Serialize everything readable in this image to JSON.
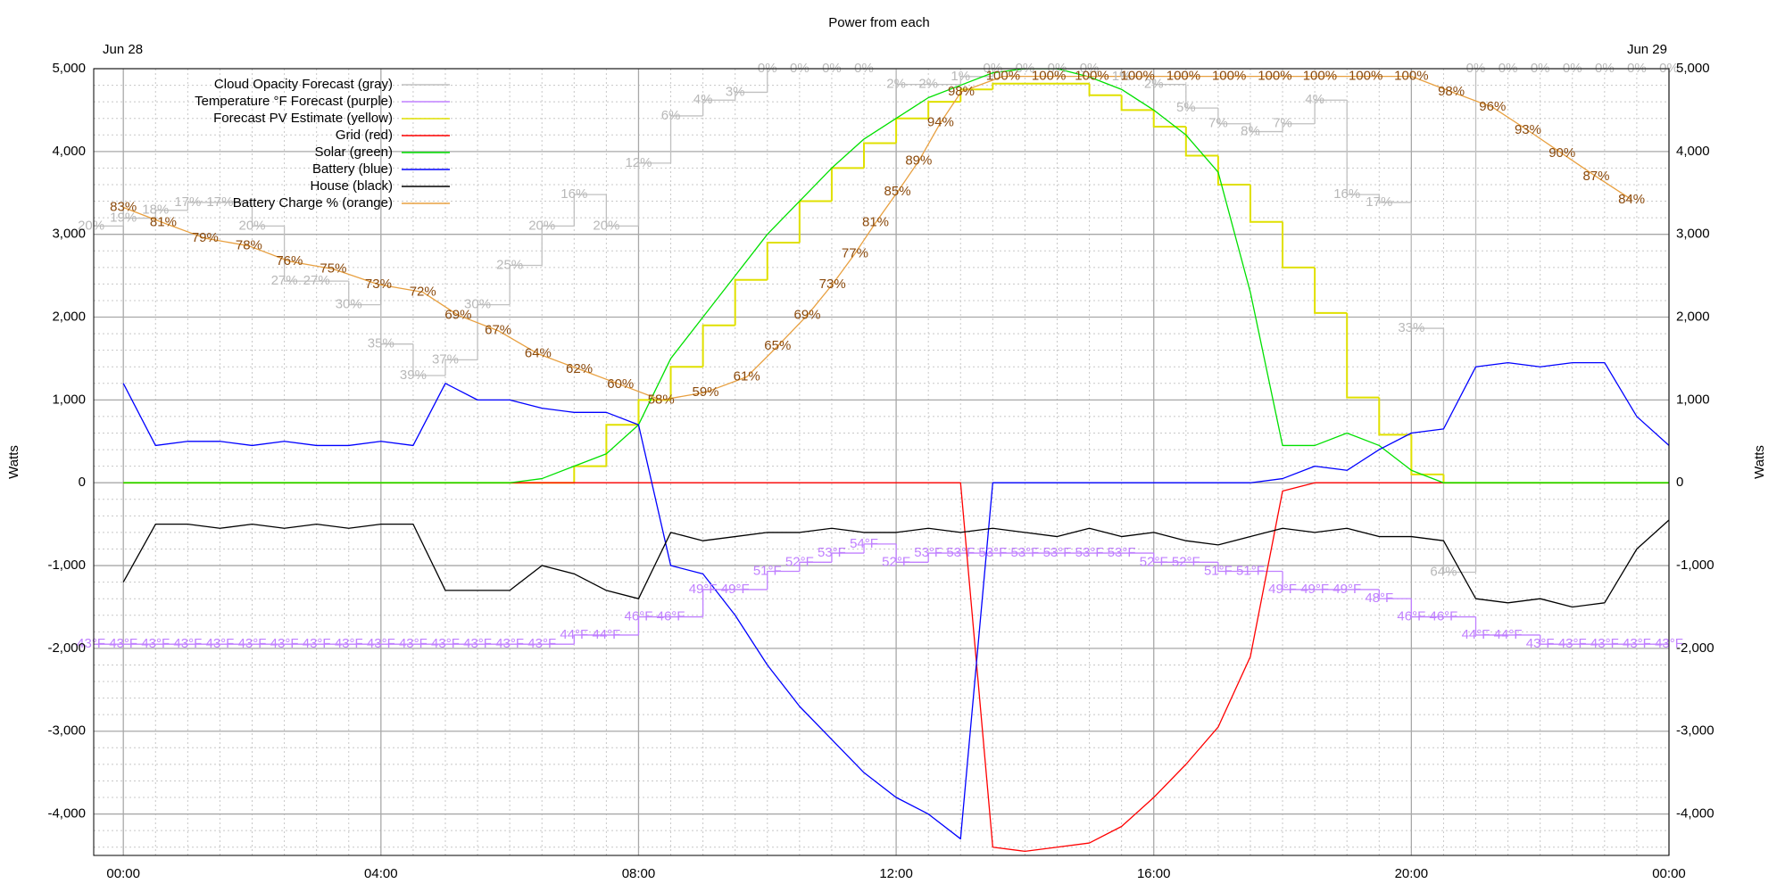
{
  "chart_data": {
    "type": "line",
    "title": "Power from each",
    "annotations": [
      "Jun 28",
      "Jun 29"
    ],
    "y_label": "Watts",
    "grid": true,
    "legend": "top-left",
    "xlim": [
      -0.46,
      24
    ],
    "xticks": [
      {
        "value": 0,
        "label": "00:00"
      },
      {
        "value": 4,
        "label": "04:00"
      },
      {
        "value": 8,
        "label": "08:00"
      },
      {
        "value": 12,
        "label": "12:00"
      },
      {
        "value": 16,
        "label": "16:00"
      },
      {
        "value": 20,
        "label": "20:00"
      },
      {
        "value": 24,
        "label": "00:00"
      }
    ],
    "ylim": [
      -4500,
      5000
    ],
    "yticks": [
      {
        "value": -4000,
        "label": "-4,000"
      },
      {
        "value": -3000,
        "label": "-3,000"
      },
      {
        "value": -2000,
        "label": "-2,000"
      },
      {
        "value": -1000,
        "label": "-1,000"
      },
      0,
      {
        "value": 1000,
        "label": "1,000"
      },
      {
        "value": 2000,
        "label": "2,000"
      },
      {
        "value": 3000,
        "label": "3,000"
      },
      {
        "value": 4000,
        "label": "4,000"
      },
      {
        "value": 5000,
        "label": "5,000"
      }
    ],
    "y2lim": [
      -1.1,
      101
    ],
    "y3lim": [
      100,
      0
    ],
    "y4lim": [
      19.8,
      106.2
    ],
    "x": [
      0,
      0.5,
      1,
      1.5,
      2,
      2.5,
      3,
      3.5,
      4,
      4.5,
      5,
      5.5,
      6,
      6.5,
      7,
      7.5,
      8,
      8.5,
      9,
      9.5,
      10,
      10.5,
      11,
      11.5,
      12,
      12.5,
      13,
      13.5,
      14,
      14.5,
      15,
      15.5,
      16,
      16.5,
      17,
      17.5,
      18,
      18.5,
      19,
      19.5,
      20,
      20.5,
      21,
      21.5,
      22,
      22.5,
      23,
      23.5,
      24
    ],
    "series": [
      {
        "name": "Cloud Opacity Forecast (gray)",
        "color": "#c0c0c0",
        "axis": "y3",
        "step": true,
        "x": [
          -0.5,
          0,
          0.5,
          1,
          1.5,
          2,
          2.5,
          3,
          3.5,
          4,
          4.5,
          5,
          5.5,
          6,
          6.5,
          7,
          7.5,
          8,
          8.5,
          9,
          9.5,
          10,
          10.5,
          11,
          11.5,
          12,
          12.5,
          13,
          13.5,
          14,
          14.5,
          15,
          15.5,
          16,
          16.5,
          17,
          17.5,
          18,
          18.5,
          19,
          19.5,
          20,
          20.5,
          21,
          21.5,
          22,
          22.5,
          23,
          23.5,
          24
        ],
        "values": [
          20,
          19,
          18,
          17,
          17,
          20,
          27,
          27,
          30,
          35,
          39,
          37,
          30,
          25,
          20,
          16,
          20,
          12,
          6,
          4,
          3,
          0,
          0,
          0,
          0,
          2,
          2,
          1,
          0,
          0,
          0,
          0,
          1,
          2,
          5,
          7,
          8,
          7,
          4,
          16,
          17,
          33,
          64,
          0,
          0,
          0,
          0,
          0,
          0,
          0
        ],
        "value_labels": [
          "20%",
          "19%",
          "18%",
          "17%",
          "17%",
          "20%",
          "27%",
          "27%",
          "30%",
          "35%",
          "39%",
          "37%",
          "30%",
          "25%",
          "20%",
          "16%",
          "20%",
          "12%",
          "6%",
          "4%",
          "3%",
          "0%",
          "0%",
          "0%",
          "0%",
          "2%",
          "2%",
          "1%",
          "0%",
          "0%",
          "0%",
          "0%",
          "1%",
          "2%",
          "5%",
          "7%",
          "8%",
          "7%",
          "4%",
          "16%",
          "17%",
          "33%",
          "64%",
          "0%",
          "0%",
          "0%",
          "0%",
          "0%",
          "0%",
          "0%"
        ]
      },
      {
        "name": "Temperature °F Forecast (purple)",
        "color": "#c080ff",
        "axis": "y4",
        "step": true,
        "x": [
          -0.5,
          0,
          0.5,
          1,
          1.5,
          2,
          2.5,
          3,
          3.5,
          4,
          4.5,
          5,
          5.5,
          6,
          6.5,
          7,
          7.5,
          8,
          8.5,
          9,
          9.5,
          10,
          10.5,
          11,
          11.5,
          12,
          12.5,
          13,
          13.5,
          14,
          14.5,
          15,
          15.5,
          16,
          16.5,
          17,
          17.5,
          18,
          18.5,
          19,
          19.5,
          20,
          20.5,
          21,
          21.5,
          22,
          22.5,
          23,
          23.5,
          24
        ],
        "values": [
          43,
          43,
          43,
          43,
          43,
          43,
          43,
          43,
          43,
          43,
          43,
          43,
          43,
          43,
          43,
          44,
          44,
          46,
          46,
          49,
          49,
          51,
          52,
          53,
          54,
          52,
          53,
          53,
          53,
          53,
          53,
          53,
          53,
          52,
          52,
          51,
          51,
          49,
          49,
          49,
          48,
          46,
          46,
          44,
          44,
          43,
          43,
          43,
          43,
          43
        ],
        "value_labels": [
          "43°F",
          "43°F",
          "43°F",
          "43°F",
          "43°F",
          "43°F",
          "43°F",
          "43°F",
          "43°F",
          "43°F",
          "43°F",
          "43°F",
          "43°F",
          "43°F",
          "43°F",
          "44°F",
          "44°F",
          "46°F",
          "46°F",
          "49°F",
          "49°F",
          "51°F",
          "52°F",
          "53°F",
          "54°F",
          "52°F",
          "53°F",
          "53°F",
          "53°F",
          "53°F",
          "53°F",
          "53°F",
          "53°F",
          "52°F",
          "52°F",
          "51°F",
          "51°F",
          "49°F",
          "49°F",
          "49°F",
          "48°F",
          "46°F",
          "46°F",
          "44°F",
          "44°F",
          "43°F",
          "43°F",
          "43°F",
          "43°F",
          "43°F"
        ]
      },
      {
        "name": "Forecast PV Estimate (yellow)",
        "color": "#e0e000",
        "step": true,
        "values": [
          0,
          0,
          0,
          0,
          0,
          0,
          0,
          0,
          0,
          0,
          0,
          0,
          0,
          0,
          200,
          700,
          1000,
          1400,
          1900,
          2450,
          2900,
          3400,
          3800,
          4100,
          4400,
          4600,
          4750,
          4820,
          4820,
          4820,
          4680,
          4500,
          4300,
          3950,
          3600,
          3150,
          2600,
          2050,
          1030,
          580,
          100,
          0,
          0,
          0,
          0,
          0,
          0,
          0,
          0
        ]
      },
      {
        "name": "Grid (red)",
        "color": "#ff0000",
        "values": [
          0,
          0,
          0,
          0,
          0,
          0,
          0,
          0,
          0,
          0,
          0,
          0,
          0,
          0,
          0,
          0,
          0,
          0,
          0,
          0,
          0,
          0,
          0,
          0,
          0,
          0,
          0,
          -4400,
          -4450,
          -4400,
          -4350,
          -4150,
          -3800,
          -3400,
          -2950,
          -2100,
          -100,
          0,
          0,
          0,
          0,
          0,
          0,
          0,
          0,
          0,
          0,
          0,
          0
        ]
      },
      {
        "name": "Solar (green)",
        "color": "#00e000",
        "values": [
          0,
          0,
          0,
          0,
          0,
          0,
          0,
          0,
          0,
          0,
          0,
          0,
          0,
          50,
          200,
          350,
          700,
          1500,
          2000,
          2500,
          3000,
          3400,
          3800,
          4150,
          4400,
          4650,
          4800,
          4950,
          5000,
          5000,
          4900,
          4750,
          4500,
          4200,
          3750,
          2300,
          450,
          450,
          600,
          450,
          150,
          0,
          0,
          0,
          0,
          0,
          0,
          0,
          0
        ]
      },
      {
        "name": "Battery (blue)",
        "color": "#0000ff",
        "values": [
          1200,
          450,
          500,
          500,
          450,
          500,
          450,
          450,
          500,
          450,
          1200,
          1000,
          1000,
          900,
          850,
          850,
          700,
          -1000,
          -1100,
          -1600,
          -2200,
          -2700,
          -3100,
          -3500,
          -3800,
          -4000,
          -4300,
          0,
          0,
          0,
          0,
          0,
          0,
          0,
          0,
          0,
          50,
          200,
          150,
          400,
          600,
          650,
          1400,
          1450,
          1400,
          1450,
          1450,
          800,
          450
        ]
      },
      {
        "name": "House (black)",
        "color": "#000000",
        "values": [
          -1200,
          -500,
          -500,
          -550,
          -500,
          -550,
          -500,
          -550,
          -500,
          -500,
          -1300,
          -1300,
          -1300,
          -1000,
          -1100,
          -1300,
          -1400,
          -600,
          -700,
          -650,
          -600,
          -600,
          -550,
          -600,
          -600,
          -550,
          -600,
          -550,
          -600,
          -650,
          -550,
          -650,
          -600,
          -700,
          -750,
          -650,
          -550,
          -600,
          -550,
          -650,
          -650,
          -700,
          -1400,
          -1450,
          -1400,
          -1500,
          -1450,
          -800,
          -450
        ]
      },
      {
        "name": "Battery Charge % (orange)",
        "color": "#e8a040",
        "axis": "y2",
        "x": [
          0,
          0.62,
          1.27,
          1.95,
          2.58,
          3.26,
          3.96,
          4.65,
          5.2,
          5.82,
          6.44,
          7.08,
          7.72,
          8.35,
          9.04,
          9.68,
          10.16,
          10.62,
          11.01,
          11.36,
          11.68,
          12.02,
          12.35,
          12.69,
          13.01,
          13.66,
          14.37,
          15.04,
          15.75,
          16.46,
          17.17,
          17.88,
          18.58,
          19.29,
          20,
          20.62,
          21.26,
          21.81,
          22.34,
          22.87,
          23.42
        ],
        "values": [
          83,
          81,
          79,
          78,
          76,
          75,
          73,
          72,
          69,
          67,
          64,
          62,
          60,
          58,
          59,
          61,
          65,
          69,
          73,
          77,
          81,
          85,
          89,
          94,
          98,
          100,
          100,
          100,
          100,
          100,
          100,
          100,
          100,
          100,
          100,
          98,
          96,
          93,
          90,
          87,
          84
        ],
        "value_labels": [
          "83%",
          "81%",
          "79%",
          "78%",
          "76%",
          "75%",
          "73%",
          "72%",
          "69%",
          "67%",
          "64%",
          "62%",
          "60%",
          "58%",
          "59%",
          "61%",
          "65%",
          "69%",
          "73%",
          "77%",
          "81%",
          "85%",
          "89%",
          "94%",
          "98%",
          "100%",
          "100%",
          "100%",
          "100%",
          "100%",
          "100%",
          "100%",
          "100%",
          "100%",
          "100%",
          "98%",
          "96%",
          "93%",
          "90%",
          "87%",
          "84%"
        ]
      }
    ]
  }
}
